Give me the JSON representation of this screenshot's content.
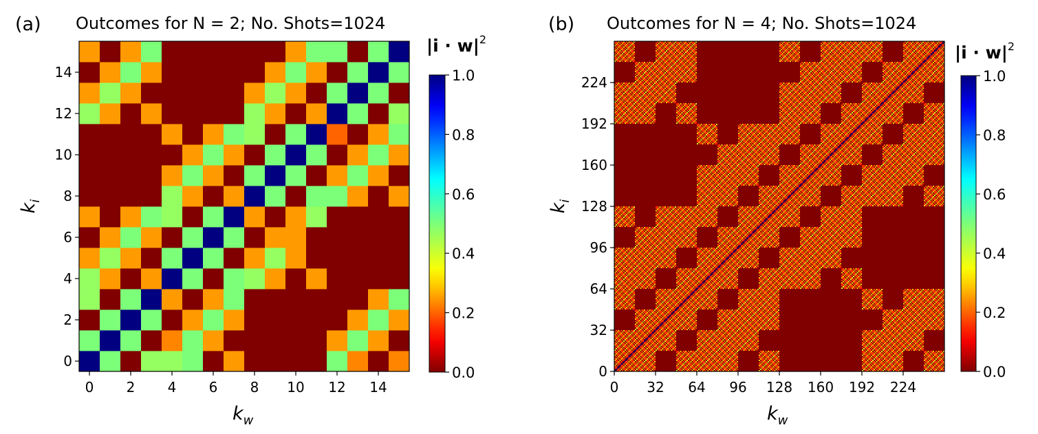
{
  "chart_data": [
    {
      "type": "heatmap",
      "panel_label": "(a)",
      "title": "Outcomes for N = 2; No. Shots=1024",
      "xlabel_main": "k",
      "xlabel_sub": "w",
      "ylabel_main": "k",
      "ylabel_sub": "i",
      "size": 16,
      "xlim": [
        -0.5,
        15.5
      ],
      "ylim": [
        -0.5,
        15.5
      ],
      "xticks": [
        0,
        2,
        4,
        6,
        8,
        10,
        12,
        14
      ],
      "yticks": [
        0,
        2,
        4,
        6,
        8,
        10,
        12,
        14
      ],
      "xtick_labels": [
        "0",
        "2",
        "4",
        "6",
        "8",
        "10",
        "12",
        "14"
      ],
      "ytick_labels": [
        "0",
        "2",
        "4",
        "6",
        "8",
        "10",
        "12",
        "14"
      ],
      "colorbar": {
        "label": "|i · w|",
        "label_exponent": "2",
        "range": [
          0.0,
          1.0
        ],
        "ticks": [
          0.0,
          0.2,
          0.4,
          0.6,
          0.8,
          1.0
        ],
        "tick_labels": [
          "0.0",
          "0.2",
          "0.4",
          "0.6",
          "0.8",
          "1.0"
        ]
      },
      "values": [
        [
          1.0,
          0.5,
          0.0,
          0.47,
          0.47,
          0.5,
          0.0,
          0.25,
          0.0,
          0.0,
          0.0,
          0.0,
          0.5,
          0.23,
          0.0,
          0.23
        ],
        [
          0.5,
          1.0,
          0.5,
          0.0,
          0.23,
          0.5,
          0.25,
          0.0,
          0.0,
          0.0,
          0.0,
          0.0,
          0.25,
          0.5,
          0.25,
          0.0
        ],
        [
          0.0,
          0.5,
          1.0,
          0.5,
          0.0,
          0.25,
          0.5,
          0.25,
          0.0,
          0.0,
          0.0,
          0.0,
          0.0,
          0.25,
          0.5,
          0.25
        ],
        [
          0.47,
          0.0,
          0.5,
          1.0,
          0.25,
          0.0,
          0.25,
          0.5,
          0.0,
          0.0,
          0.0,
          0.0,
          0.0,
          0.0,
          0.25,
          0.5
        ],
        [
          0.47,
          0.25,
          0.0,
          0.25,
          1.0,
          0.5,
          0.0,
          0.5,
          0.47,
          0.25,
          0.0,
          0.25,
          0.0,
          0.0,
          0.0,
          0.0
        ],
        [
          0.25,
          0.47,
          0.25,
          0.0,
          0.5,
          1.0,
          0.5,
          0.0,
          0.25,
          0.47,
          0.25,
          0.0,
          0.0,
          0.0,
          0.0,
          0.0
        ],
        [
          0.0,
          0.25,
          0.5,
          0.25,
          0.0,
          0.5,
          1.0,
          0.5,
          0.0,
          0.25,
          0.25,
          0.0,
          0.0,
          0.0,
          0.0,
          0.0
        ],
        [
          0.25,
          0.0,
          0.25,
          0.5,
          0.47,
          0.0,
          0.5,
          1.0,
          0.25,
          0.0,
          0.25,
          0.47,
          0.0,
          0.0,
          0.0,
          0.0
        ],
        [
          0.0,
          0.0,
          0.0,
          0.0,
          0.47,
          0.25,
          0.0,
          0.25,
          1.0,
          0.5,
          0.0,
          0.5,
          0.5,
          0.25,
          0.0,
          0.25
        ],
        [
          0.0,
          0.0,
          0.0,
          0.0,
          0.25,
          0.5,
          0.25,
          0.0,
          0.5,
          1.0,
          0.5,
          0.0,
          0.25,
          0.5,
          0.25,
          0.0
        ],
        [
          0.0,
          0.0,
          0.0,
          0.0,
          0.0,
          0.25,
          0.5,
          0.25,
          0.0,
          0.5,
          1.0,
          0.5,
          0.0,
          0.25,
          0.5,
          0.25
        ],
        [
          0.0,
          0.0,
          0.0,
          0.0,
          0.25,
          0.0,
          0.25,
          0.5,
          0.47,
          0.0,
          0.5,
          1.0,
          0.2,
          0.0,
          0.25,
          0.5
        ],
        [
          0.47,
          0.25,
          0.0,
          0.25,
          0.0,
          0.0,
          0.0,
          0.0,
          0.47,
          0.25,
          0.0,
          0.25,
          1.0,
          0.5,
          0.0,
          0.47
        ],
        [
          0.25,
          0.47,
          0.25,
          0.0,
          0.0,
          0.0,
          0.0,
          0.0,
          0.25,
          0.47,
          0.25,
          0.0,
          0.5,
          1.0,
          0.5,
          0.0
        ],
        [
          0.0,
          0.25,
          0.5,
          0.25,
          0.0,
          0.0,
          0.0,
          0.0,
          0.0,
          0.25,
          0.5,
          0.25,
          0.0,
          0.5,
          1.0,
          0.5
        ],
        [
          0.25,
          0.0,
          0.25,
          0.5,
          0.0,
          0.0,
          0.0,
          0.0,
          0.0,
          0.0,
          0.25,
          0.5,
          0.5,
          0.0,
          0.5,
          1.0
        ]
      ]
    },
    {
      "type": "heatmap",
      "panel_label": "(b)",
      "title": "Outcomes for N = 4; No. Shots=1024",
      "xlabel_main": "k",
      "xlabel_sub": "w",
      "ylabel_main": "k",
      "ylabel_sub": "i",
      "size": 256,
      "xlim": [
        0,
        256
      ],
      "ylim": [
        0,
        256
      ],
      "xticks": [
        0,
        32,
        64,
        96,
        128,
        160,
        192,
        224
      ],
      "yticks": [
        0,
        32,
        64,
        96,
        128,
        160,
        192,
        224
      ],
      "xtick_labels": [
        "0",
        "32",
        "64",
        "96",
        "128",
        "160",
        "192",
        "224"
      ],
      "ytick_labels": [
        "0",
        "32",
        "64",
        "96",
        "128",
        "160",
        "192",
        "224"
      ],
      "colorbar": {
        "label": "|i · w|",
        "label_exponent": "2",
        "range": [
          0.0,
          1.0
        ],
        "ticks": [
          0.0,
          0.2,
          0.4,
          0.6,
          0.8,
          1.0
        ],
        "tick_labels": [
          "0.0",
          "0.2",
          "0.4",
          "0.6",
          "0.8",
          "1.0"
        ]
      },
      "pattern": "block-structured diagonal: value 1.0 on the diagonal (k_i = k_w), ~0.2-0.4 on diagonal stripes within 16x16 sub-blocks, 0.0 in large off-diagonal 64x64 regions"
    }
  ]
}
